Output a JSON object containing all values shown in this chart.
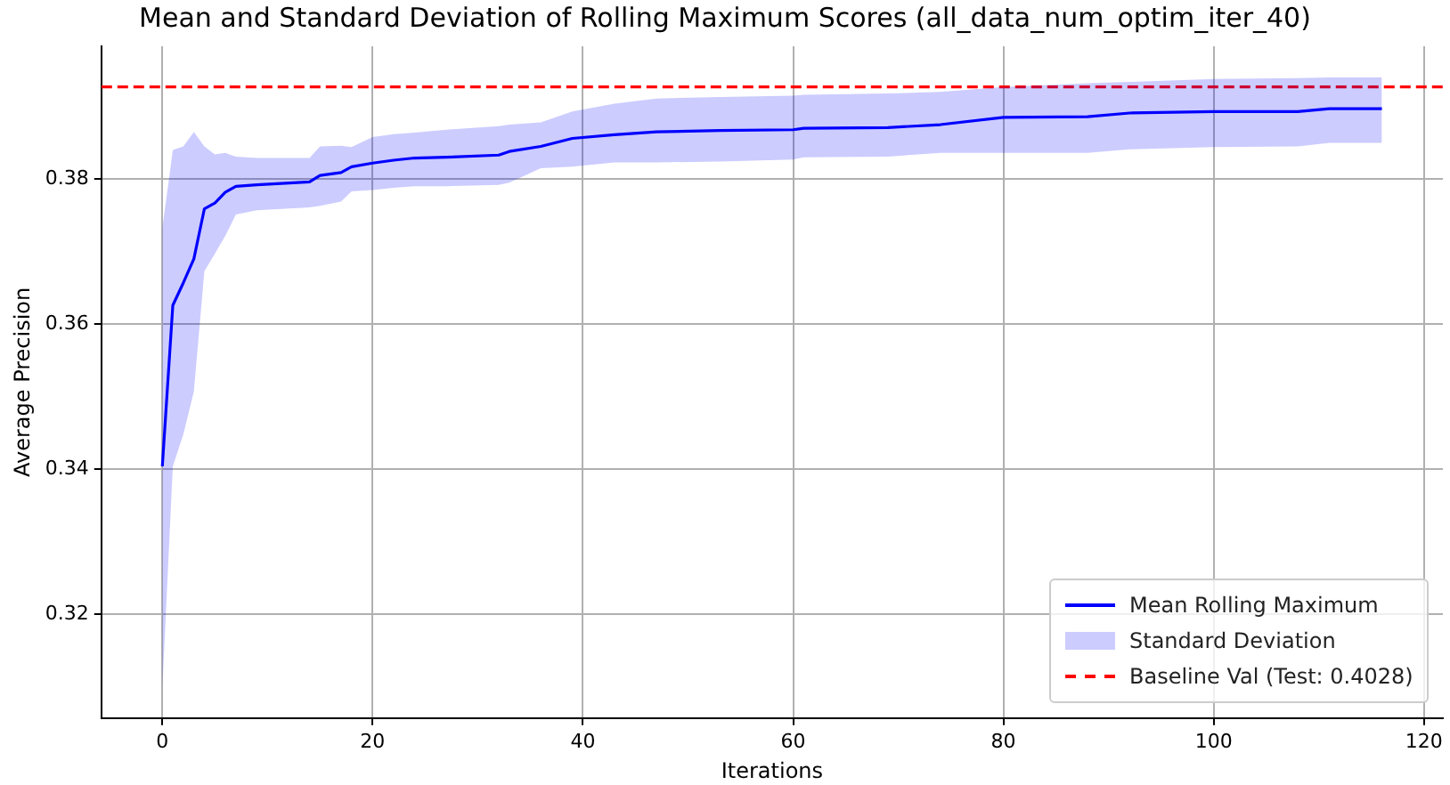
{
  "chart_data": {
    "type": "line",
    "title": "Mean and Standard Deviation of Rolling Maximum Scores (all_data_num_optim_iter_40)",
    "xlabel": "Iterations",
    "ylabel": "Average Precision",
    "x": [
      0,
      1,
      2,
      3,
      4,
      5,
      6,
      7,
      9,
      14,
      15,
      17,
      18,
      20,
      22,
      24,
      27,
      32,
      33,
      36,
      39,
      43,
      47,
      53,
      60,
      61,
      69,
      74,
      80,
      88,
      92,
      100,
      108,
      111,
      116
    ],
    "series": [
      {
        "name": "Mean Rolling Maximum",
        "color": "#0000ff",
        "values": [
          0.3404,
          0.3626,
          0.3657,
          0.369,
          0.3759,
          0.3767,
          0.3782,
          0.379,
          0.3792,
          0.3796,
          0.3805,
          0.3809,
          0.3817,
          0.3822,
          0.3826,
          0.3829,
          0.383,
          0.3833,
          0.3838,
          0.3845,
          0.3856,
          0.3861,
          0.3865,
          0.3867,
          0.3868,
          0.387,
          0.3871,
          0.3875,
          0.3885,
          0.3886,
          0.3891,
          0.3893,
          0.3893,
          0.3897,
          0.3897
        ],
        "lower": [
          0.3098,
          0.3404,
          0.3448,
          0.3507,
          0.3673,
          0.3697,
          0.3722,
          0.3751,
          0.3757,
          0.3761,
          0.3763,
          0.3769,
          0.3783,
          0.3785,
          0.3788,
          0.379,
          0.379,
          0.3792,
          0.3795,
          0.3815,
          0.3817,
          0.3823,
          0.3823,
          0.3824,
          0.3827,
          0.383,
          0.3831,
          0.3836,
          0.3836,
          0.3836,
          0.3841,
          0.3844,
          0.3845,
          0.385,
          0.385
        ],
        "upper": [
          0.3732,
          0.384,
          0.3845,
          0.3865,
          0.3845,
          0.3834,
          0.3836,
          0.3831,
          0.3829,
          0.3829,
          0.3845,
          0.3846,
          0.3844,
          0.3858,
          0.3862,
          0.3864,
          0.3868,
          0.3873,
          0.3875,
          0.3878,
          0.3893,
          0.3904,
          0.3911,
          0.3913,
          0.3915,
          0.3916,
          0.3918,
          0.392,
          0.3927,
          0.3932,
          0.3934,
          0.3938,
          0.3939,
          0.394,
          0.394
        ]
      }
    ],
    "annotations": [
      "Standard Deviation",
      "Baseline Val (Test: 0.4028)"
    ],
    "ref_lines": [
      {
        "axis": "y",
        "value": 0.3927,
        "color": "#ff0000",
        "line_style": "dashed"
      }
    ],
    "xlim": [
      -5.8,
      121.8
    ],
    "ylim": [
      0.3057,
      0.3983
    ],
    "xticks": [
      0,
      20,
      40,
      60,
      80,
      100,
      120
    ],
    "yticks": [
      0.32,
      0.34,
      0.36,
      0.38
    ],
    "grid": true,
    "legend": "bottom right",
    "marker": "none",
    "line_style": "solid"
  }
}
